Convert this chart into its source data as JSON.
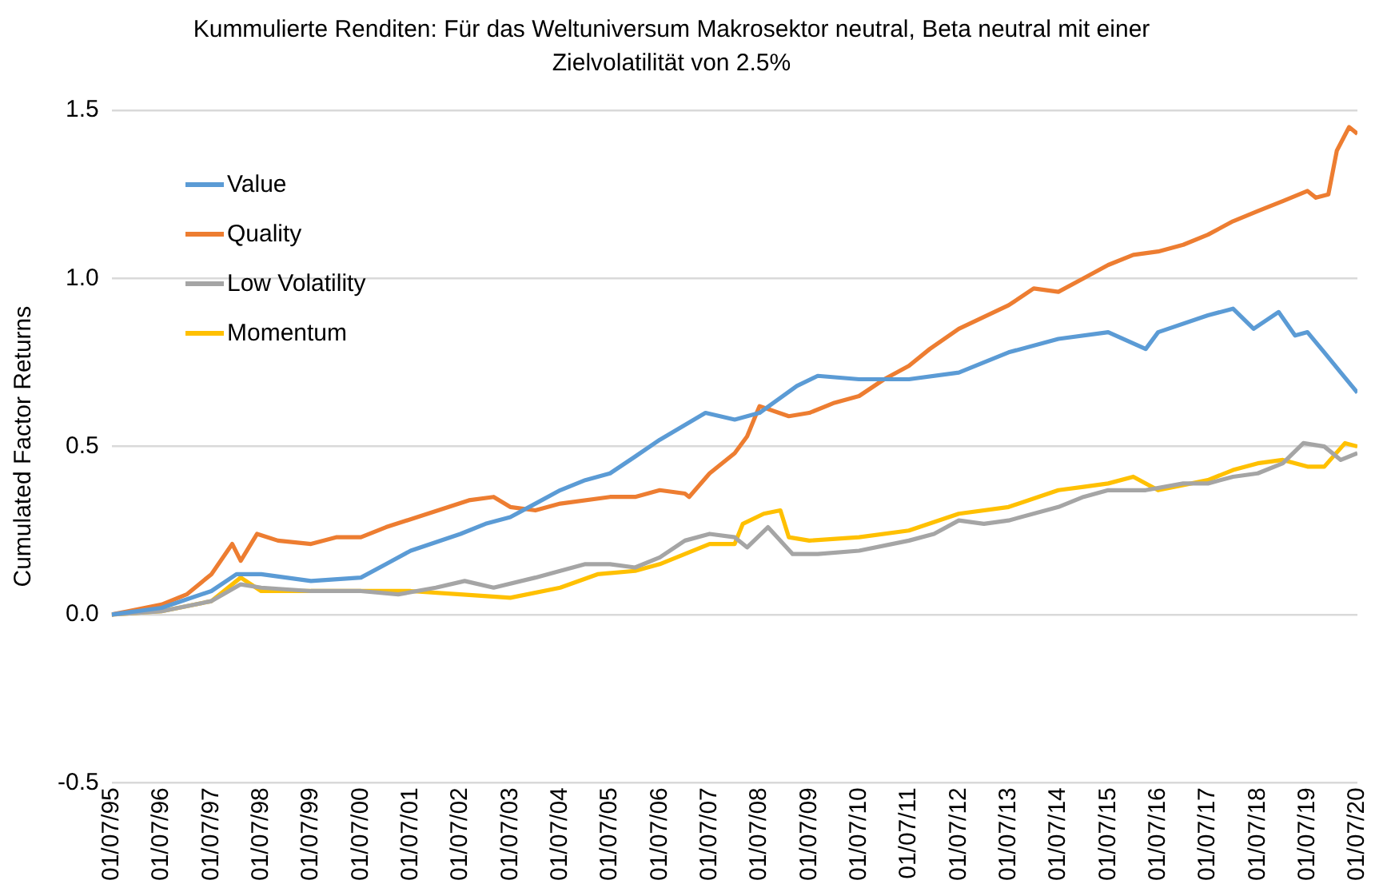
{
  "chart_data": {
    "type": "line",
    "title": "Kummulierte Renditen: Für das Weltuniversum Makrosektor neutral, Beta neutral mit einer Zielvolatilität von 2.5%",
    "ylabel": "Cumulated Factor Returns",
    "ylim": [
      -0.5,
      1.5
    ],
    "yticks": [
      {
        "value": -0.5,
        "label": "-0.5"
      },
      {
        "value": 0,
        "label": "0.0"
      },
      {
        "value": 0.5,
        "label": "0.5"
      },
      {
        "value": 1,
        "label": "1.0"
      },
      {
        "value": 1.5,
        "label": "1.5"
      }
    ],
    "xlim": [
      "1995-07-01",
      "2020-07-01"
    ],
    "xticks": [
      {
        "value": "1995-07-01",
        "label": "01/07/95"
      },
      {
        "value": "1996-07-01",
        "label": "01/07/96"
      },
      {
        "value": "1997-07-01",
        "label": "01/07/97"
      },
      {
        "value": "1998-07-01",
        "label": "01/07/98"
      },
      {
        "value": "1999-07-01",
        "label": "01/07/99"
      },
      {
        "value": "2000-07-01",
        "label": "01/07/00"
      },
      {
        "value": "2001-07-01",
        "label": "01/07/01"
      },
      {
        "value": "2002-07-01",
        "label": "01/07/02"
      },
      {
        "value": "2003-07-01",
        "label": "01/07/03"
      },
      {
        "value": "2004-07-01",
        "label": "01/07/04"
      },
      {
        "value": "2005-07-01",
        "label": "01/07/05"
      },
      {
        "value": "2006-07-01",
        "label": "01/07/06"
      },
      {
        "value": "2007-07-01",
        "label": "01/07/07"
      },
      {
        "value": "2008-07-01",
        "label": "01/07/08"
      },
      {
        "value": "2009-07-01",
        "label": "01/07/09"
      },
      {
        "value": "2010-07-01",
        "label": "01/07/10"
      },
      {
        "value": "2011-07-01",
        "label": "01/07/11"
      },
      {
        "value": "2012-07-01",
        "label": "01/07/12"
      },
      {
        "value": "2013-07-01",
        "label": "01/07/13"
      },
      {
        "value": "2014-07-01",
        "label": "01/07/14"
      },
      {
        "value": "2015-07-01",
        "label": "01/07/15"
      },
      {
        "value": "2016-07-01",
        "label": "01/07/16"
      },
      {
        "value": "2017-07-01",
        "label": "01/07/17"
      },
      {
        "value": "2018-07-01",
        "label": "01/07/18"
      },
      {
        "value": "2019-07-01",
        "label": "01/07/19"
      },
      {
        "value": "2020-07-01",
        "label": "01/07/20"
      }
    ],
    "grid": "y",
    "legend": "top left",
    "marker": "none",
    "line_style": "solid",
    "series": [
      {
        "name": "Value",
        "color": "#5b9bd5",
        "x": [
          "1995-07",
          "1996-07",
          "1997-07",
          "1998-01",
          "1998-07",
          "1999-07",
          "2000-07",
          "2001-01",
          "2001-07",
          "2002-07",
          "2003-01",
          "2003-07",
          "2004-01",
          "2004-07",
          "2005-01",
          "2005-07",
          "2006-01",
          "2006-07",
          "2007-06",
          "2008-01",
          "2008-07",
          "2009-04",
          "2009-09",
          "2010-07",
          "2011-07",
          "2012-07",
          "2013-01",
          "2013-07",
          "2014-07",
          "2015-07",
          "2016-04",
          "2016-07",
          "2017-07",
          "2018-01",
          "2018-06",
          "2018-12",
          "2019-04",
          "2019-07",
          "2019-11",
          "2020-03",
          "2020-07"
        ],
        "values": [
          0,
          0.02,
          0.07,
          0.12,
          0.12,
          0.1,
          0.11,
          0.15,
          0.19,
          0.24,
          0.27,
          0.29,
          0.33,
          0.37,
          0.4,
          0.42,
          0.47,
          0.52,
          0.6,
          0.58,
          0.6,
          0.68,
          0.71,
          0.7,
          0.7,
          0.72,
          0.75,
          0.78,
          0.82,
          0.84,
          0.79,
          0.84,
          0.89,
          0.91,
          0.85,
          0.9,
          0.83,
          0.84,
          0.78,
          0.72,
          0.66
        ]
      },
      {
        "name": "Quality",
        "color": "#ed7d31",
        "x": [
          "1995-07",
          "1996-07",
          "1997-01",
          "1997-07",
          "1997-12",
          "1998-02",
          "1998-06",
          "1998-11",
          "1999-07",
          "2000-01",
          "2000-07",
          "2001-01",
          "2002-09",
          "2003-03",
          "2003-07",
          "2004-01",
          "2004-07",
          "2005-07",
          "2006-01",
          "2006-07",
          "2007-01",
          "2007-02",
          "2007-07",
          "2008-01",
          "2008-04",
          "2008-07",
          "2009-02",
          "2009-07",
          "2010-01",
          "2010-07",
          "2011-01",
          "2011-07",
          "2011-12",
          "2012-07",
          "2013-07",
          "2014-01",
          "2014-07",
          "2015-01",
          "2015-07",
          "2016-01",
          "2016-07",
          "2017-01",
          "2017-07",
          "2018-01",
          "2018-07",
          "2019-01",
          "2019-07",
          "2019-09",
          "2019-12",
          "2020-02",
          "2020-05",
          "2020-07"
        ],
        "values": [
          0,
          0.03,
          0.06,
          0.12,
          0.21,
          0.16,
          0.24,
          0.22,
          0.21,
          0.23,
          0.23,
          0.26,
          0.34,
          0.35,
          0.32,
          0.31,
          0.33,
          0.35,
          0.35,
          0.37,
          0.36,
          0.35,
          0.42,
          0.48,
          0.53,
          0.62,
          0.59,
          0.6,
          0.63,
          0.65,
          0.7,
          0.74,
          0.79,
          0.85,
          0.92,
          0.97,
          0.96,
          1.0,
          1.04,
          1.07,
          1.08,
          1.1,
          1.13,
          1.17,
          1.2,
          1.23,
          1.26,
          1.24,
          1.25,
          1.38,
          1.45,
          1.43
        ]
      },
      {
        "name": "Low Volatility",
        "color": "#a5a5a5",
        "x": [
          "1995-07",
          "1996-07",
          "1997-07",
          "1998-02",
          "1998-07",
          "1999-07",
          "2000-07",
          "2001-04",
          "2002-01",
          "2002-08",
          "2003-03",
          "2004-01",
          "2004-07",
          "2005-01",
          "2005-07",
          "2006-01",
          "2006-07",
          "2007-01",
          "2007-07",
          "2008-01",
          "2008-04",
          "2008-09",
          "2009-03",
          "2009-09",
          "2010-07",
          "2011-07",
          "2012-01",
          "2012-07",
          "2013-01",
          "2013-07",
          "2014-07",
          "2015-01",
          "2015-07",
          "2016-04",
          "2017-01",
          "2017-07",
          "2018-01",
          "2018-07",
          "2019-01",
          "2019-06",
          "2019-11",
          "2020-03",
          "2020-07"
        ],
        "values": [
          0,
          0.01,
          0.04,
          0.09,
          0.08,
          0.07,
          0.07,
          0.06,
          0.08,
          0.1,
          0.08,
          0.11,
          0.13,
          0.15,
          0.15,
          0.14,
          0.17,
          0.22,
          0.24,
          0.23,
          0.2,
          0.26,
          0.18,
          0.18,
          0.19,
          0.22,
          0.24,
          0.28,
          0.27,
          0.28,
          0.32,
          0.35,
          0.37,
          0.37,
          0.39,
          0.39,
          0.41,
          0.42,
          0.45,
          0.51,
          0.5,
          0.46,
          0.48
        ]
      },
      {
        "name": "Momentum",
        "color": "#ffc000",
        "x": [
          "1995-07",
          "1996-07",
          "1997-07",
          "1998-02",
          "1998-07",
          "1999-07",
          "2000-07",
          "2001-07",
          "2002-07",
          "2003-07",
          "2004-07",
          "2005-04",
          "2006-01",
          "2006-07",
          "2007-01",
          "2007-07",
          "2008-01",
          "2008-03",
          "2008-08",
          "2008-12",
          "2009-02",
          "2009-07",
          "2010-07",
          "2011-07",
          "2012-07",
          "2013-07",
          "2014-07",
          "2015-01",
          "2015-07",
          "2016-01",
          "2016-07",
          "2017-07",
          "2018-01",
          "2018-07",
          "2019-01",
          "2019-07",
          "2019-11",
          "2020-04",
          "2020-07"
        ],
        "values": [
          0,
          0.01,
          0.04,
          0.11,
          0.07,
          0.07,
          0.07,
          0.07,
          0.06,
          0.05,
          0.08,
          0.12,
          0.13,
          0.15,
          0.18,
          0.21,
          0.21,
          0.27,
          0.3,
          0.31,
          0.23,
          0.22,
          0.23,
          0.25,
          0.3,
          0.32,
          0.37,
          0.38,
          0.39,
          0.41,
          0.37,
          0.4,
          0.43,
          0.45,
          0.46,
          0.44,
          0.44,
          0.51,
          0.5
        ]
      }
    ]
  }
}
